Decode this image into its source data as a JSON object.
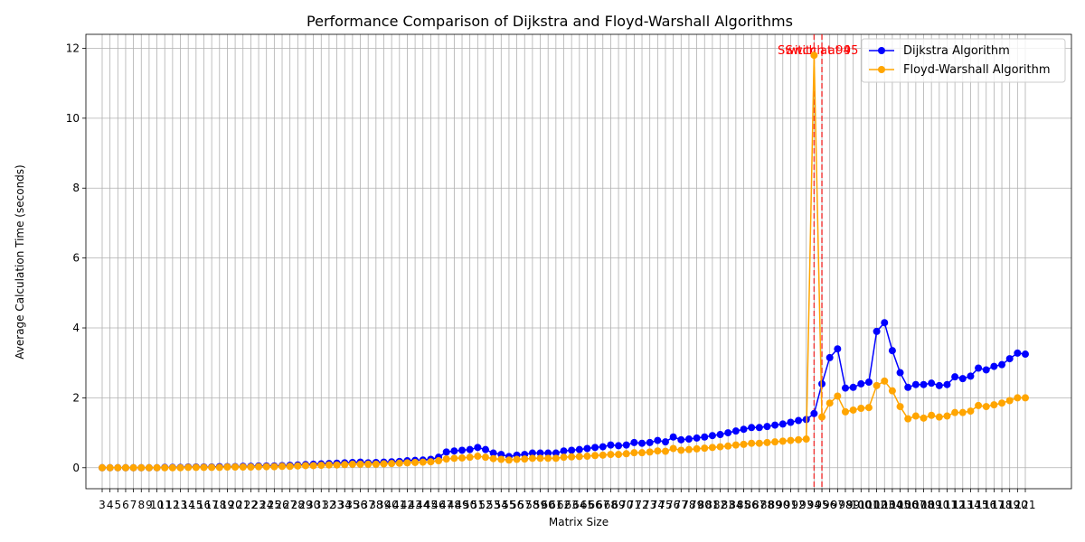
{
  "chart_data": {
    "type": "line",
    "title": "Performance Comparison of Dijkstra and Floyd-Warshall Algorithms",
    "xlabel": "Matrix Size",
    "ylabel": "Average Calculation Time (seconds)",
    "categories": [
      3,
      4,
      5,
      6,
      7,
      8,
      9,
      10,
      11,
      12,
      13,
      14,
      15,
      16,
      17,
      18,
      19,
      20,
      21,
      22,
      23,
      24,
      25,
      26,
      27,
      28,
      29,
      30,
      31,
      32,
      33,
      34,
      35,
      36,
      37,
      38,
      39,
      40,
      41,
      42,
      43,
      44,
      45,
      46,
      47,
      48,
      49,
      50,
      51,
      52,
      53,
      54,
      55,
      56,
      57,
      58,
      59,
      60,
      61,
      62,
      63,
      64,
      65,
      66,
      67,
      68,
      69,
      70,
      71,
      72,
      73,
      74,
      75,
      76,
      77,
      78,
      79,
      80,
      81,
      82,
      83,
      84,
      85,
      86,
      87,
      88,
      89,
      90,
      91,
      92,
      93,
      94,
      95,
      96,
      97,
      98,
      99,
      100,
      101,
      102,
      103,
      104,
      105,
      106,
      107,
      108,
      109,
      110,
      111,
      112,
      113,
      114,
      115,
      116,
      117,
      118,
      119,
      120,
      121
    ],
    "series": [
      {
        "name": "Dijkstra Algorithm",
        "color": "#0000ff",
        "values": [
          0,
          0,
          0,
          0,
          0,
          0,
          0,
          0,
          0.01,
          0.01,
          0.01,
          0.02,
          0.02,
          0.02,
          0.02,
          0.03,
          0.03,
          0.03,
          0.04,
          0.04,
          0.05,
          0.05,
          0.05,
          0.06,
          0.07,
          0.08,
          0.09,
          0.1,
          0.11,
          0.12,
          0.13,
          0.14,
          0.15,
          0.16,
          0.14,
          0.15,
          0.16,
          0.17,
          0.18,
          0.2,
          0.21,
          0.22,
          0.24,
          0.3,
          0.45,
          0.48,
          0.5,
          0.52,
          0.58,
          0.52,
          0.42,
          0.38,
          0.32,
          0.36,
          0.38,
          0.42,
          0.42,
          0.42,
          0.42,
          0.48,
          0.5,
          0.52,
          0.55,
          0.58,
          0.6,
          0.65,
          0.63,
          0.65,
          0.72,
          0.7,
          0.72,
          0.78,
          0.74,
          0.88,
          0.8,
          0.82,
          0.85,
          0.88,
          0.92,
          0.95,
          1.0,
          1.05,
          1.1,
          1.15,
          1.15,
          1.18,
          1.22,
          1.25,
          1.3,
          1.35,
          1.38,
          1.55,
          2.4,
          3.15,
          3.4,
          2.28,
          2.3,
          2.4,
          2.45,
          3.9,
          4.15,
          3.35,
          2.72,
          2.3,
          2.38,
          2.38,
          2.42,
          2.35,
          2.38,
          2.6,
          2.55,
          2.62,
          2.85,
          2.8,
          2.9,
          2.95,
          3.12,
          3.28,
          3.25
        ]
      },
      {
        "name": "Floyd-Warshall Algorithm",
        "color": "#ffa500",
        "values": [
          0,
          0,
          0,
          0,
          0,
          0,
          0,
          0,
          0,
          0,
          0,
          0.01,
          0.01,
          0.01,
          0.01,
          0.01,
          0.02,
          0.02,
          0.02,
          0.02,
          0.03,
          0.03,
          0.03,
          0.04,
          0.04,
          0.05,
          0.06,
          0.06,
          0.07,
          0.08,
          0.08,
          0.09,
          0.1,
          0.1,
          0.1,
          0.1,
          0.11,
          0.12,
          0.13,
          0.14,
          0.15,
          0.16,
          0.17,
          0.2,
          0.25,
          0.27,
          0.28,
          0.3,
          0.33,
          0.3,
          0.26,
          0.24,
          0.22,
          0.24,
          0.25,
          0.27,
          0.27,
          0.27,
          0.27,
          0.3,
          0.31,
          0.32,
          0.33,
          0.35,
          0.36,
          0.38,
          0.38,
          0.4,
          0.43,
          0.43,
          0.45,
          0.48,
          0.47,
          0.55,
          0.5,
          0.52,
          0.54,
          0.56,
          0.58,
          0.6,
          0.62,
          0.65,
          0.67,
          0.7,
          0.7,
          0.72,
          0.74,
          0.76,
          0.78,
          0.8,
          0.82,
          11.8,
          1.45,
          1.85,
          2.05,
          1.6,
          1.65,
          1.7,
          1.72,
          2.35,
          2.48,
          2.2,
          1.75,
          1.4,
          1.48,
          1.42,
          1.5,
          1.45,
          1.48,
          1.58,
          1.58,
          1.62,
          1.78,
          1.75,
          1.8,
          1.85,
          1.92,
          2.0,
          2.0
        ]
      }
    ],
    "annotations": [
      {
        "x": 94,
        "text": "Switch at 94",
        "color": "#ff0000"
      },
      {
        "x": 95,
        "text": "Switch at 95",
        "color": "#ff0000"
      }
    ],
    "ylim": [
      -0.6,
      12.4
    ],
    "yticks": [
      0,
      2,
      4,
      6,
      8,
      10,
      12
    ],
    "grid": true,
    "legend": "upper right"
  }
}
